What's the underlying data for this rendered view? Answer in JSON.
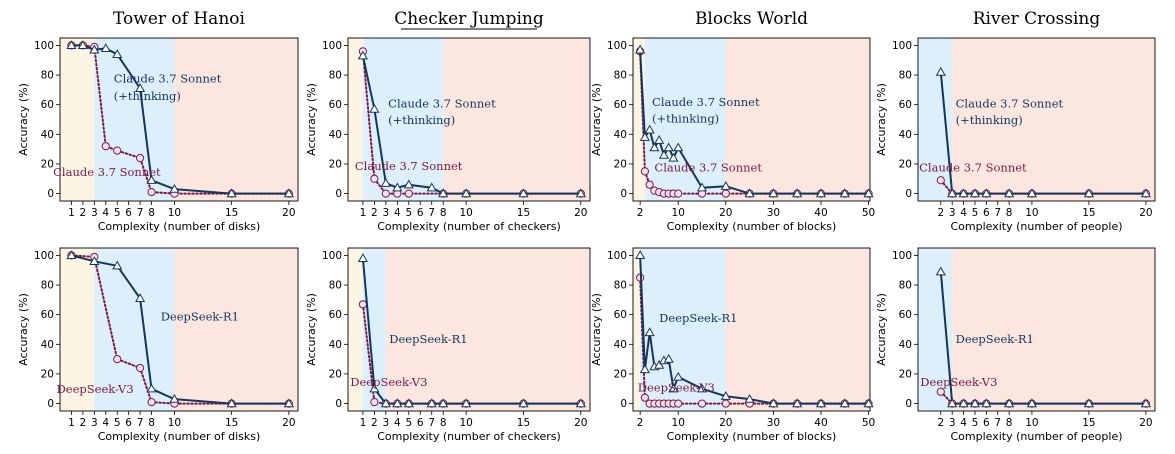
{
  "colors": {
    "thinking": "#13365c",
    "nonthinking": "#7b1848",
    "marker_fill": "#f6e2ec",
    "thinking_marker_fill": "#ffffff",
    "bg_low": "#fcf5e4",
    "bg_mid": "#ddeffb",
    "bg_high": "#fbe6e0"
  },
  "chart_data": [
    {
      "type": "line",
      "puzzle": "Tower of Hanoi",
      "title": "Tower of Hanoi",
      "underline": false,
      "xlabel": "Complexity (number of disks)",
      "ylabel": "Accuracy (%)",
      "xlim": [
        0,
        20.8
      ],
      "ylim": [
        -5,
        105
      ],
      "xticks": [
        1,
        2,
        3,
        4,
        5,
        6,
        7,
        8,
        10,
        15,
        20
      ],
      "yticks": [
        0,
        20,
        40,
        60,
        80,
        100
      ],
      "regions": [
        {
          "from": 0,
          "to": 3,
          "zone": "low"
        },
        {
          "from": 3,
          "to": 10,
          "zone": "mid"
        },
        {
          "from": 10,
          "to": 20.8,
          "zone": "high"
        }
      ],
      "series": [
        {
          "name": "Claude 3.7 Sonnet (+thinking)",
          "style": "thinking",
          "x": [
            1,
            2,
            3,
            4,
            5,
            7,
            8,
            10,
            15,
            20
          ],
          "y": [
            100,
            100,
            97,
            98,
            94,
            71,
            9,
            3,
            0,
            0
          ]
        },
        {
          "name": "Claude 3.7 Sonnet",
          "style": "nonthinking",
          "x": [
            1,
            2,
            3,
            4,
            5,
            7,
            8,
            10,
            15,
            20
          ],
          "y": [
            100,
            100,
            99,
            32,
            29,
            24,
            1,
            0,
            0,
            0
          ]
        }
      ],
      "annotations": [
        {
          "text": "Claude 3.7 Sonnet",
          "style": "thinking",
          "x": 4.7,
          "y": 75
        },
        {
          "text": "(+thinking)",
          "style": "thinking",
          "x": 4.7,
          "y": 63
        },
        {
          "text": "Claude 3.7 Sonnet",
          "style": "nonthinking",
          "x": -0.6,
          "y": 12
        }
      ]
    },
    {
      "type": "line",
      "puzzle": "Checker Jumping",
      "title": "Checker Jumping",
      "underline": true,
      "xlabel": "Complexity (number of checkers)",
      "ylabel": "Accuracy (%)",
      "xlim": [
        -0.3,
        20.8
      ],
      "ylim": [
        -5,
        105
      ],
      "xticks": [
        1,
        2,
        3,
        4,
        5,
        6,
        7,
        8,
        10,
        15,
        20
      ],
      "yticks": [
        0,
        20,
        40,
        60,
        80,
        100
      ],
      "regions": [
        {
          "from": -0.3,
          "to": 1,
          "zone": "low"
        },
        {
          "from": 1,
          "to": 8,
          "zone": "mid"
        },
        {
          "from": 8,
          "to": 20.8,
          "zone": "high"
        }
      ],
      "series": [
        {
          "name": "Claude 3.7 Sonnet (+thinking)",
          "style": "thinking",
          "x": [
            1,
            2,
            3,
            4,
            5,
            7,
            8,
            10,
            15,
            20
          ],
          "y": [
            93,
            57,
            7,
            4,
            6,
            4,
            0,
            0,
            0,
            0
          ]
        },
        {
          "name": "Claude 3.7 Sonnet",
          "style": "nonthinking",
          "x": [
            1,
            2,
            3,
            4,
            5,
            8,
            10,
            15,
            20
          ],
          "y": [
            96,
            10,
            0,
            0,
            0,
            0,
            0,
            0,
            0
          ]
        }
      ],
      "annotations": [
        {
          "text": "Claude 3.7 Sonnet",
          "style": "thinking",
          "x": 3.2,
          "y": 58
        },
        {
          "text": "(+thinking)",
          "style": "thinking",
          "x": 3.2,
          "y": 47
        },
        {
          "text": "Claude 3.7 Sonnet",
          "style": "nonthinking",
          "x": 0.3,
          "y": 16
        }
      ]
    },
    {
      "type": "line",
      "puzzle": "Blocks World",
      "title": "Blocks World",
      "underline": false,
      "xlabel": "Complexity (number of blocks)",
      "ylabel": "Accuracy (%)",
      "xlim": [
        0.5,
        50.3
      ],
      "ylim": [
        -5,
        105
      ],
      "xticks": [
        2,
        10,
        20,
        30,
        40,
        50
      ],
      "yticks": [
        0,
        20,
        40,
        60,
        80,
        100
      ],
      "regions": [
        {
          "from": 0.5,
          "to": 3,
          "zone": "low"
        },
        {
          "from": 3,
          "to": 20,
          "zone": "mid"
        },
        {
          "from": 20,
          "to": 50.3,
          "zone": "high"
        }
      ],
      "series": [
        {
          "name": "Claude 3.7 Sonnet (+thinking)",
          "style": "thinking",
          "x": [
            2,
            3,
            4,
            5,
            6,
            7,
            8,
            9,
            10,
            15,
            20,
            25,
            30,
            35,
            40,
            45,
            50
          ],
          "y": [
            97,
            38,
            43,
            31,
            36,
            26,
            31,
            24,
            31,
            4,
            5,
            0,
            0,
            0,
            0,
            0,
            0
          ]
        },
        {
          "name": "Claude 3.7 Sonnet",
          "style": "nonthinking",
          "x": [
            2,
            3,
            4,
            5,
            6,
            7,
            8,
            9,
            10,
            15,
            20,
            25,
            30,
            35,
            40,
            45,
            50
          ],
          "y": [
            96,
            15,
            6,
            2,
            1,
            0,
            0,
            0,
            0,
            0,
            0,
            0,
            0,
            0,
            0,
            0,
            0
          ]
        }
      ],
      "annotations": [
        {
          "text": "Claude 3.7 Sonnet",
          "style": "thinking",
          "x": 4.5,
          "y": 59
        },
        {
          "text": "(+thinking)",
          "style": "thinking",
          "x": 4.5,
          "y": 48
        },
        {
          "text": "Claude 3.7 Sonnet",
          "style": "nonthinking",
          "x": 5,
          "y": 15
        }
      ]
    },
    {
      "type": "line",
      "puzzle": "River Crossing",
      "title": "River Crossing",
      "underline": false,
      "xlabel": "Complexity (number of people)",
      "ylabel": "Accuracy (%)",
      "xlim": [
        0,
        20.8
      ],
      "ylim": [
        -5,
        105
      ],
      "xticks": [
        2,
        3,
        4,
        5,
        6,
        7,
        8,
        10,
        15,
        20
      ],
      "yticks": [
        0,
        20,
        40,
        60,
        80,
        100
      ],
      "regions": [
        {
          "from": 0,
          "to": 3,
          "zone": "mid"
        },
        {
          "from": 3,
          "to": 20.8,
          "zone": "high"
        }
      ],
      "series": [
        {
          "name": "Claude 3.7 Sonnet (+thinking)",
          "style": "thinking",
          "x": [
            2,
            3,
            4,
            5,
            6,
            8,
            10,
            15,
            20
          ],
          "y": [
            82,
            0,
            0,
            0,
            0,
            0,
            0,
            0,
            0
          ]
        },
        {
          "name": "Claude 3.7 Sonnet",
          "style": "nonthinking",
          "x": [
            2,
            3,
            4,
            5,
            6,
            8,
            10,
            15,
            20
          ],
          "y": [
            9,
            0,
            0,
            0,
            0,
            0,
            0,
            0,
            0
          ]
        }
      ],
      "annotations": [
        {
          "text": "Claude 3.7 Sonnet",
          "style": "thinking",
          "x": 3.3,
          "y": 58
        },
        {
          "text": "(+thinking)",
          "style": "thinking",
          "x": 3.3,
          "y": 47
        },
        {
          "text": "Claude 3.7 Sonnet",
          "style": "nonthinking",
          "x": 0.1,
          "y": 15
        }
      ]
    },
    {
      "type": "line",
      "puzzle": "Tower of Hanoi",
      "title": "",
      "underline": false,
      "xlabel": "Complexity (number of disks)",
      "ylabel": "Accuracy (%)",
      "xlim": [
        0,
        20.8
      ],
      "ylim": [
        -5,
        105
      ],
      "xticks": [
        1,
        2,
        3,
        4,
        5,
        6,
        7,
        8,
        10,
        15,
        20
      ],
      "yticks": [
        0,
        20,
        40,
        60,
        80,
        100
      ],
      "regions": [
        {
          "from": 0,
          "to": 3,
          "zone": "low"
        },
        {
          "from": 3,
          "to": 10,
          "zone": "mid"
        },
        {
          "from": 10,
          "to": 20.8,
          "zone": "high"
        }
      ],
      "series": [
        {
          "name": "DeepSeek-R1",
          "style": "thinking",
          "x": [
            1,
            3,
            5,
            7,
            8,
            10,
            15,
            20
          ],
          "y": [
            100,
            96,
            93,
            71,
            10,
            3,
            0,
            0
          ]
        },
        {
          "name": "DeepSeek-V3",
          "style": "nonthinking",
          "x": [
            1,
            3,
            5,
            7,
            8,
            10,
            15,
            20
          ],
          "y": [
            100,
            99,
            30,
            24,
            1,
            0,
            0,
            0
          ]
        }
      ],
      "annotations": [
        {
          "text": "DeepSeek-R1",
          "style": "thinking",
          "x": 8.8,
          "y": 56
        },
        {
          "text": "DeepSeek-V3",
          "style": "nonthinking",
          "x": -0.3,
          "y": 7
        }
      ]
    },
    {
      "type": "line",
      "puzzle": "Checker Jumping",
      "title": "",
      "underline": false,
      "xlabel": "Complexity (number of checkers)",
      "ylabel": "Accuracy (%)",
      "xlim": [
        -0.3,
        20.8
      ],
      "ylim": [
        -5,
        105
      ],
      "xticks": [
        1,
        2,
        3,
        4,
        5,
        6,
        7,
        8,
        10,
        15,
        20
      ],
      "yticks": [
        0,
        20,
        40,
        60,
        80,
        100
      ],
      "regions": [
        {
          "from": -0.3,
          "to": 1,
          "zone": "low"
        },
        {
          "from": 1,
          "to": 3,
          "zone": "mid"
        },
        {
          "from": 3,
          "to": 20.8,
          "zone": "high"
        }
      ],
      "series": [
        {
          "name": "DeepSeek-R1",
          "style": "thinking",
          "x": [
            1,
            2,
            3,
            4,
            5,
            7,
            8,
            10,
            15,
            20
          ],
          "y": [
            98,
            10,
            0,
            0,
            0,
            0,
            0,
            0,
            0,
            0
          ]
        },
        {
          "name": "DeepSeek-V3",
          "style": "nonthinking",
          "x": [
            1,
            2,
            3,
            4,
            5,
            7,
            8,
            10,
            15,
            20
          ],
          "y": [
            67,
            1,
            0,
            0,
            0,
            0,
            0,
            0,
            0,
            0
          ]
        }
      ],
      "annotations": [
        {
          "text": "DeepSeek-R1",
          "style": "thinking",
          "x": 3.3,
          "y": 41
        },
        {
          "text": "DeepSeek-V3",
          "style": "nonthinking",
          "x": -0.1,
          "y": 12
        }
      ]
    },
    {
      "type": "line",
      "puzzle": "Blocks World",
      "title": "",
      "underline": false,
      "xlabel": "Complexity (number of blocks)",
      "ylabel": "Accuracy (%)",
      "xlim": [
        0.5,
        50.3
      ],
      "ylim": [
        -5,
        105
      ],
      "xticks": [
        2,
        10,
        20,
        30,
        40,
        50
      ],
      "yticks": [
        0,
        20,
        40,
        60,
        80,
        100
      ],
      "regions": [
        {
          "from": 0.5,
          "to": 2,
          "zone": "low"
        },
        {
          "from": 2,
          "to": 20,
          "zone": "mid"
        },
        {
          "from": 20,
          "to": 50.3,
          "zone": "high"
        }
      ],
      "series": [
        {
          "name": "DeepSeek-R1",
          "style": "thinking",
          "x": [
            2,
            3,
            4,
            5,
            6,
            7,
            8,
            9,
            10,
            15,
            20,
            25,
            30,
            35,
            40,
            45,
            50
          ],
          "y": [
            100,
            23,
            48,
            25,
            26,
            29,
            30,
            10,
            18,
            10,
            5,
            3,
            0,
            0,
            0,
            0,
            0
          ]
        },
        {
          "name": "DeepSeek-V3",
          "style": "nonthinking",
          "x": [
            2,
            3,
            4,
            5,
            6,
            7,
            8,
            9,
            10,
            15,
            20,
            25,
            30,
            35,
            40,
            45,
            50
          ],
          "y": [
            85,
            4,
            0,
            0,
            0,
            0,
            0,
            0,
            0,
            0,
            0,
            0,
            0,
            0,
            0,
            0,
            0
          ]
        }
      ],
      "annotations": [
        {
          "text": "DeepSeek-R1",
          "style": "thinking",
          "x": 6,
          "y": 55
        },
        {
          "text": "DeepSeek-V3",
          "style": "nonthinking",
          "x": 1.5,
          "y": 8
        }
      ]
    },
    {
      "type": "line",
      "puzzle": "River Crossing",
      "title": "",
      "underline": false,
      "xlabel": "Complexity (number of people)",
      "ylabel": "Accuracy (%)",
      "xlim": [
        0,
        20.8
      ],
      "ylim": [
        -5,
        105
      ],
      "xticks": [
        2,
        3,
        4,
        5,
        6,
        7,
        8,
        10,
        15,
        20
      ],
      "yticks": [
        0,
        20,
        40,
        60,
        80,
        100
      ],
      "regions": [
        {
          "from": 0,
          "to": 3,
          "zone": "mid"
        },
        {
          "from": 3,
          "to": 20.8,
          "zone": "high"
        }
      ],
      "series": [
        {
          "name": "DeepSeek-R1",
          "style": "thinking",
          "x": [
            2,
            3,
            4,
            5,
            6,
            8,
            10,
            15,
            20
          ],
          "y": [
            89,
            0,
            0,
            0,
            0,
            0,
            0,
            0,
            0
          ]
        },
        {
          "name": "DeepSeek-V3",
          "style": "nonthinking",
          "x": [
            2,
            3,
            4,
            5,
            6,
            8,
            10,
            15,
            20
          ],
          "y": [
            8,
            0,
            0,
            0,
            0,
            0,
            0,
            0,
            0
          ]
        }
      ],
      "annotations": [
        {
          "text": "DeepSeek-R1",
          "style": "thinking",
          "x": 3.3,
          "y": 41
        },
        {
          "text": "DeepSeek-V3",
          "style": "nonthinking",
          "x": 0.2,
          "y": 12
        }
      ]
    }
  ]
}
